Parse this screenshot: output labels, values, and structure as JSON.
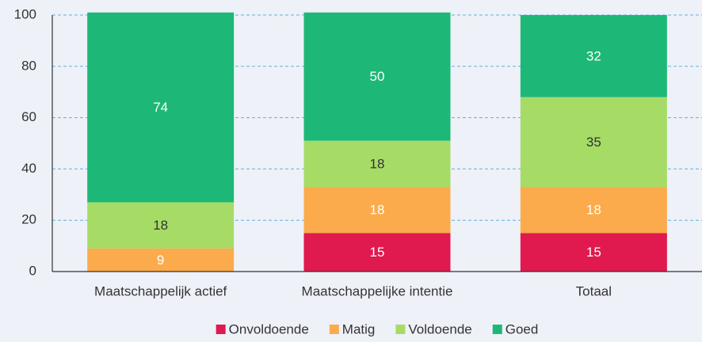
{
  "chart_data": {
    "type": "stacked_bar",
    "categories": [
      "Maatschappelijk actief",
      "Maatschappelijke intentie",
      "Totaal"
    ],
    "series": [
      {
        "name": "Onvoldoende",
        "color": "#e0194f",
        "label_color": "#ffffff",
        "values": [
          null,
          15,
          15
        ]
      },
      {
        "name": "Matig",
        "color": "#fbab4b",
        "label_color": "#ffffff",
        "values": [
          9,
          18,
          18
        ]
      },
      {
        "name": "Voldoende",
        "color": "#a6dc66",
        "label_color": "#333333",
        "values": [
          18,
          18,
          35
        ]
      },
      {
        "name": "Goed",
        "color": "#1db877",
        "label_color": "#ffffff",
        "values": [
          74,
          50,
          32
        ]
      }
    ],
    "ylim": [
      0,
      100
    ],
    "yticks": [
      0,
      20,
      40,
      60,
      80,
      100
    ],
    "grid": true,
    "legend": "bottom"
  }
}
